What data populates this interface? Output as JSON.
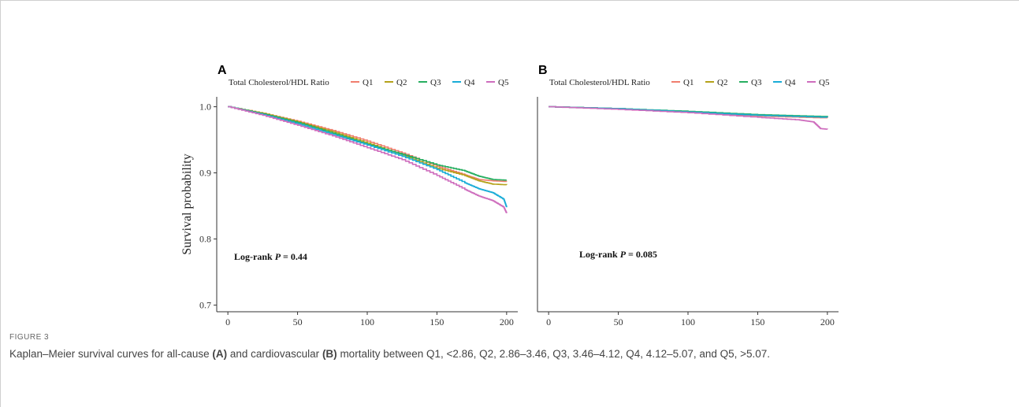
{
  "figure": {
    "label": "FIGURE 3",
    "caption_parts": [
      {
        "t": "Kaplan–Meier survival curves for all-cause ",
        "b": false
      },
      {
        "t": "(A)",
        "b": true
      },
      {
        "t": " and cardiovascular ",
        "b": false
      },
      {
        "t": "(B)",
        "b": true
      },
      {
        "t": " mortality between Q1, <2.86, Q2, 2.86–3.46, Q3, 3.46–4.12, Q4, 4.12–5.07, and Q5, >5.07.",
        "b": false
      }
    ]
  },
  "colors": {
    "Q1": "#F07D6E",
    "Q2": "#B5A21A",
    "Q3": "#27AE60",
    "Q4": "#19ACD7",
    "Q5": "#CE6DBD"
  },
  "chart_data": [
    {
      "type": "line",
      "panel": "A",
      "legend_title": "Total Cholesterol/HDL Ratio",
      "ylabel": "Survival probability",
      "xlabel": "",
      "xlim": [
        -8,
        208
      ],
      "ylim": [
        0.69,
        1.015
      ],
      "xticks": [
        0,
        50,
        100,
        150,
        200
      ],
      "yticks": [
        0.7,
        0.8,
        0.9,
        1.0
      ],
      "ytick_labels": [
        "0.7",
        "0.8",
        "0.9",
        "1.0"
      ],
      "legend": "top",
      "annotation": {
        "prefix": "Log-rank ",
        "p": "P",
        "suffix": " = 0.44"
      },
      "series": [
        {
          "name": "Q1",
          "x": [
            0,
            25,
            50,
            75,
            100,
            125,
            150,
            170,
            180,
            190,
            200
          ],
          "y": [
            1.0,
            0.99,
            0.978,
            0.964,
            0.948,
            0.93,
            0.91,
            0.897,
            0.89,
            0.888,
            0.887
          ]
        },
        {
          "name": "Q2",
          "x": [
            0,
            25,
            50,
            75,
            100,
            125,
            150,
            170,
            180,
            190,
            200
          ],
          "y": [
            1.0,
            0.99,
            0.977,
            0.962,
            0.945,
            0.927,
            0.907,
            0.896,
            0.888,
            0.883,
            0.882
          ]
        },
        {
          "name": "Q3",
          "x": [
            0,
            25,
            50,
            75,
            100,
            125,
            150,
            170,
            180,
            190,
            200
          ],
          "y": [
            1.0,
            0.989,
            0.976,
            0.96,
            0.943,
            0.928,
            0.912,
            0.903,
            0.895,
            0.89,
            0.889
          ]
        },
        {
          "name": "Q4",
          "x": [
            0,
            25,
            50,
            75,
            100,
            125,
            150,
            170,
            180,
            190,
            198,
            200
          ],
          "y": [
            1.0,
            0.988,
            0.974,
            0.958,
            0.942,
            0.925,
            0.905,
            0.885,
            0.876,
            0.87,
            0.86,
            0.848
          ]
        },
        {
          "name": "Q5",
          "x": [
            0,
            25,
            50,
            75,
            100,
            125,
            150,
            170,
            180,
            190,
            198,
            200
          ],
          "y": [
            1.0,
            0.987,
            0.972,
            0.956,
            0.938,
            0.92,
            0.896,
            0.875,
            0.865,
            0.858,
            0.848,
            0.839
          ]
        }
      ]
    },
    {
      "type": "line",
      "panel": "B",
      "legend_title": "Total Cholesterol/HDL Ratio",
      "ylabel": "",
      "xlabel": "",
      "xlim": [
        -8,
        208
      ],
      "ylim": [
        0.69,
        1.015
      ],
      "xticks": [
        0,
        50,
        100,
        150,
        200
      ],
      "yticks": [],
      "ytick_labels": [],
      "legend": "top",
      "annotation": {
        "prefix": "Log-rank ",
        "p": "P",
        "suffix": " = 0.085"
      },
      "series": [
        {
          "name": "Q1",
          "x": [
            0,
            50,
            100,
            150,
            200
          ],
          "y": [
            1.0,
            0.997,
            0.992,
            0.986,
            0.983
          ]
        },
        {
          "name": "Q2",
          "x": [
            0,
            50,
            100,
            150,
            200
          ],
          "y": [
            1.0,
            0.997,
            0.992,
            0.987,
            0.984
          ]
        },
        {
          "name": "Q3",
          "x": [
            0,
            50,
            100,
            150,
            200
          ],
          "y": [
            1.0,
            0.997,
            0.993,
            0.988,
            0.985
          ]
        },
        {
          "name": "Q4",
          "x": [
            0,
            50,
            100,
            150,
            200
          ],
          "y": [
            1.0,
            0.997,
            0.992,
            0.987,
            0.984
          ]
        },
        {
          "name": "Q5",
          "x": [
            0,
            50,
            100,
            150,
            180,
            190,
            195,
            200
          ],
          "y": [
            1.0,
            0.996,
            0.991,
            0.984,
            0.98,
            0.977,
            0.967,
            0.966
          ]
        }
      ]
    }
  ]
}
